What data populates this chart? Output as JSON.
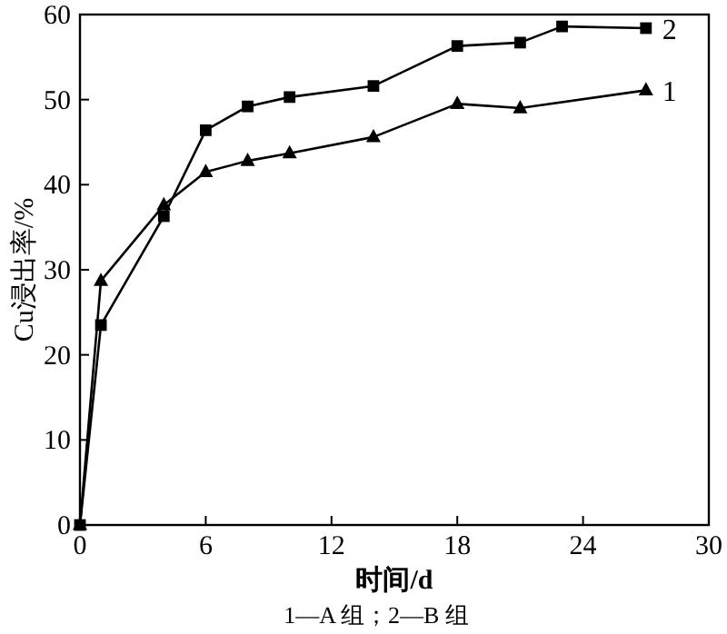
{
  "chart_data": {
    "type": "line",
    "xlabel": "时间/d",
    "ylabel": "Cu浸出率/%",
    "xlim": [
      0,
      30
    ],
    "ylim": [
      0,
      60
    ],
    "xticks": [
      0,
      6,
      12,
      18,
      24,
      30
    ],
    "yticks": [
      0,
      10,
      20,
      30,
      40,
      50,
      60
    ],
    "grid": false,
    "series": [
      {
        "name": "2",
        "color": "#000000",
        "marker": "square",
        "x": [
          0,
          1,
          4,
          6,
          8,
          10,
          14,
          18,
          21,
          23,
          27
        ],
        "values": [
          0,
          23.5,
          36.3,
          46.4,
          49.2,
          50.3,
          51.6,
          56.3,
          56.7,
          58.6,
          58.4
        ]
      },
      {
        "name": "1",
        "color": "#000000",
        "marker": "triangle",
        "x": [
          0,
          1,
          4,
          6,
          8,
          10,
          14,
          18,
          21,
          27
        ],
        "values": [
          0,
          28.7,
          37.6,
          41.5,
          42.8,
          43.7,
          45.6,
          49.5,
          49.0,
          51.1
        ]
      }
    ],
    "annotations": [
      "1—A 组；2—B 组"
    ]
  }
}
